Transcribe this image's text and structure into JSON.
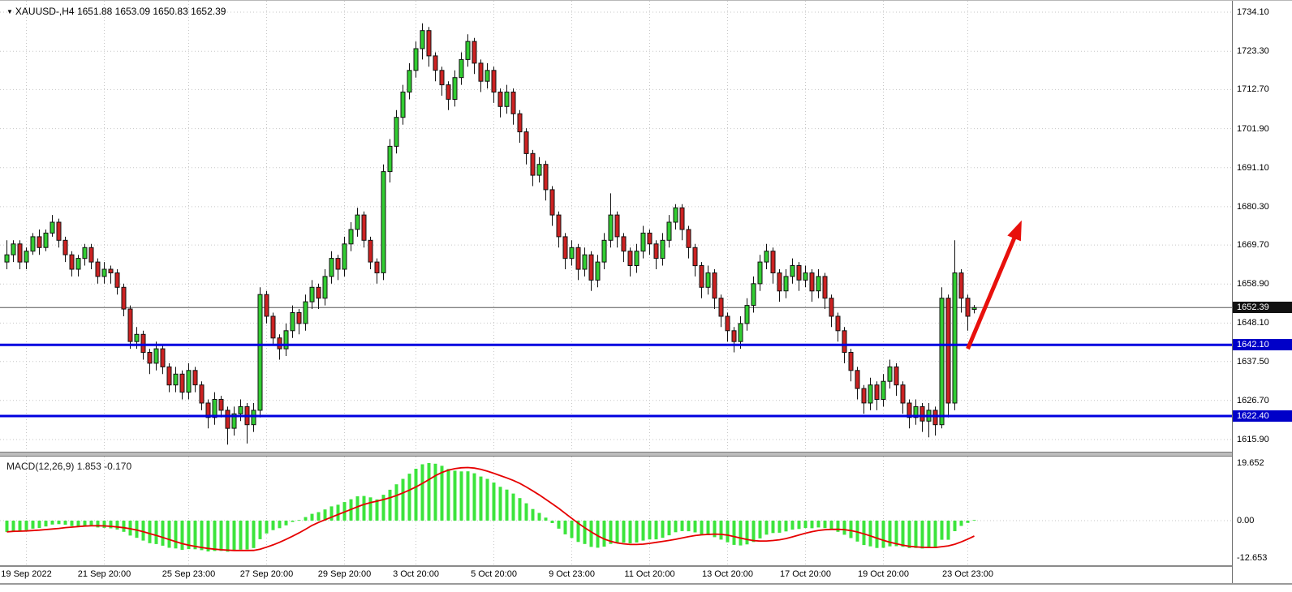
{
  "header": {
    "dropdown_icon": "▼",
    "symbol": "XAUUSD-,H4",
    "ohlc_text": "1651.88 1653.09 1650.83 1652.39"
  },
  "colors": {
    "up": "#32CD32",
    "down": "#CC2222",
    "outline": "#111111",
    "grid": "#c6c6c6",
    "current_price_line": "#555555",
    "level_line": "#0000E0",
    "badge_current_bg": "#111111",
    "badge_level_bg": "#0000C8",
    "arrow": "#E8100C",
    "macd_bar": "#3CE43C",
    "macd_signal": "#E60000"
  },
  "chart_data": {
    "type": "candlestick",
    "symbol": "XAUUSD-",
    "timeframe": "H4",
    "ohlc_header": {
      "open": "1651.88",
      "high": "1653.09",
      "low": "1650.83",
      "close": "1652.39"
    },
    "current_price": 1652.39,
    "y_axis_labels": [
      1734.1,
      1723.3,
      1712.7,
      1701.9,
      1691.1,
      1680.3,
      1669.7,
      1658.9,
      1648.1,
      1637.5,
      1626.7,
      1615.9
    ],
    "x_axis_labels": [
      {
        "label": "19 Sep 2022",
        "index": 3
      },
      {
        "label": "21 Sep 20:00",
        "index": 15
      },
      {
        "label": "25 Sep 23:00",
        "index": 28
      },
      {
        "label": "27 Sep 20:00",
        "index": 40
      },
      {
        "label": "29 Sep 20:00",
        "index": 52
      },
      {
        "label": "3 Oct 20:00",
        "index": 63
      },
      {
        "label": "5 Oct 20:00",
        "index": 75
      },
      {
        "label": "9 Oct 23:00",
        "index": 87
      },
      {
        "label": "11 Oct 20:00",
        "index": 99
      },
      {
        "label": "13 Oct 20:00",
        "index": 111
      },
      {
        "label": "17 Oct 20:00",
        "index": 123
      },
      {
        "label": "19 Oct 20:00",
        "index": 135
      },
      {
        "label": "23 Oct 23:00",
        "index": 148
      }
    ],
    "horizontal_lines": [
      {
        "price": 1642.1,
        "label": "1642.10"
      },
      {
        "price": 1622.4,
        "label": "1622.40"
      }
    ],
    "trend_arrow": {
      "from": {
        "index": 148,
        "price": 1641.0
      },
      "to": {
        "index": 156.3,
        "price": 1676.5
      }
    },
    "candles": [
      [
        1665,
        1671,
        1663,
        1667
      ],
      [
        1667,
        1671,
        1665,
        1670
      ],
      [
        1670,
        1671,
        1663,
        1665
      ],
      [
        1665,
        1669,
        1663,
        1668
      ],
      [
        1668,
        1673,
        1667,
        1672
      ],
      [
        1672,
        1674,
        1667,
        1669
      ],
      [
        1669,
        1674,
        1668,
        1673
      ],
      [
        1673,
        1678,
        1672,
        1676
      ],
      [
        1676,
        1677,
        1669,
        1671
      ],
      [
        1671,
        1672,
        1665,
        1667
      ],
      [
        1667,
        1668,
        1661,
        1663
      ],
      [
        1663,
        1667,
        1661,
        1666
      ],
      [
        1666,
        1670,
        1664,
        1669
      ],
      [
        1669,
        1670,
        1663,
        1665
      ],
      [
        1665,
        1666,
        1659,
        1661
      ],
      [
        1661,
        1665,
        1659,
        1663
      ],
      [
        1663,
        1664,
        1659,
        1662
      ],
      [
        1662,
        1663,
        1656,
        1658
      ],
      [
        1658,
        1659,
        1650,
        1652
      ],
      [
        1652,
        1653,
        1641,
        1643
      ],
      [
        1643,
        1647,
        1641,
        1645
      ],
      [
        1645,
        1646,
        1638,
        1640
      ],
      [
        1640,
        1641,
        1634,
        1637
      ],
      [
        1637,
        1643,
        1635,
        1641
      ],
      [
        1641,
        1642,
        1634,
        1636
      ],
      [
        1636,
        1637,
        1629,
        1631
      ],
      [
        1631,
        1636,
        1629,
        1634
      ],
      [
        1634,
        1635,
        1627,
        1629
      ],
      [
        1629,
        1637,
        1627,
        1635
      ],
      [
        1635,
        1636,
        1629,
        1631
      ],
      [
        1631,
        1632,
        1624,
        1626
      ],
      [
        1626,
        1627,
        1619,
        1622
      ],
      [
        1622,
        1629,
        1620,
        1627
      ],
      [
        1627,
        1628,
        1622,
        1624
      ],
      [
        1624,
        1625,
        1614.5,
        1619
      ],
      [
        1619,
        1625,
        1617,
        1623
      ],
      [
        1623,
        1627,
        1621,
        1625
      ],
      [
        1625,
        1626,
        1614.8,
        1620
      ],
      [
        1620,
        1626,
        1618,
        1624
      ],
      [
        1624,
        1658,
        1622,
        1656
      ],
      [
        1656,
        1657,
        1648,
        1650
      ],
      [
        1650,
        1651,
        1642,
        1644
      ],
      [
        1644,
        1645,
        1638,
        1641
      ],
      [
        1641,
        1648,
        1639,
        1646
      ],
      [
        1646,
        1653,
        1644,
        1651
      ],
      [
        1651,
        1652,
        1645,
        1648
      ],
      [
        1648,
        1656,
        1646,
        1654
      ],
      [
        1654,
        1660,
        1652,
        1658
      ],
      [
        1658,
        1659,
        1652,
        1655
      ],
      [
        1655,
        1663,
        1653,
        1661
      ],
      [
        1661,
        1668,
        1659,
        1666
      ],
      [
        1666,
        1667,
        1660,
        1663
      ],
      [
        1663,
        1672,
        1661,
        1670
      ],
      [
        1670,
        1676,
        1668,
        1674
      ],
      [
        1674,
        1680,
        1672,
        1678
      ],
      [
        1678,
        1679,
        1669,
        1671
      ],
      [
        1671,
        1672,
        1663,
        1665
      ],
      [
        1665,
        1666,
        1659,
        1662
      ],
      [
        1662,
        1692,
        1660,
        1690
      ],
      [
        1690,
        1699,
        1687,
        1697
      ],
      [
        1697,
        1707,
        1695,
        1705
      ],
      [
        1705,
        1714,
        1703,
        1712
      ],
      [
        1712,
        1720,
        1710,
        1718
      ],
      [
        1718,
        1726,
        1716,
        1724
      ],
      [
        1724,
        1731,
        1721,
        1729
      ],
      [
        1729,
        1730,
        1719,
        1722
      ],
      [
        1722,
        1723,
        1715,
        1718
      ],
      [
        1718,
        1719,
        1711,
        1714
      ],
      [
        1714,
        1715,
        1707,
        1710
      ],
      [
        1710,
        1718,
        1708,
        1716
      ],
      [
        1716,
        1723,
        1714,
        1721
      ],
      [
        1721,
        1728,
        1719,
        1726
      ],
      [
        1726,
        1727,
        1717,
        1720
      ],
      [
        1720,
        1721,
        1712,
        1715
      ],
      [
        1715,
        1720,
        1713,
        1718
      ],
      [
        1718,
        1719,
        1709,
        1712
      ],
      [
        1712,
        1713,
        1705,
        1708
      ],
      [
        1708,
        1714,
        1706,
        1712
      ],
      [
        1712,
        1713,
        1703,
        1706
      ],
      [
        1706,
        1707,
        1698,
        1701
      ],
      [
        1701,
        1702,
        1692,
        1695
      ],
      [
        1695,
        1696,
        1686,
        1689
      ],
      [
        1689,
        1694,
        1687,
        1692
      ],
      [
        1692,
        1693,
        1682,
        1685
      ],
      [
        1685,
        1686,
        1675,
        1678
      ],
      [
        1678,
        1679,
        1669,
        1672
      ],
      [
        1672,
        1673,
        1663,
        1666
      ],
      [
        1666,
        1671,
        1664,
        1669
      ],
      [
        1669,
        1670,
        1660,
        1663
      ],
      [
        1663,
        1669,
        1661,
        1667
      ],
      [
        1667,
        1668,
        1657,
        1660
      ],
      [
        1660,
        1667,
        1658,
        1665
      ],
      [
        1665,
        1673,
        1663,
        1671
      ],
      [
        1671,
        1684,
        1669,
        1678
      ],
      [
        1678,
        1679,
        1669,
        1672
      ],
      [
        1672,
        1673,
        1665,
        1668
      ],
      [
        1668,
        1669,
        1661,
        1664
      ],
      [
        1664,
        1670,
        1662,
        1668
      ],
      [
        1668,
        1675,
        1666,
        1673
      ],
      [
        1673,
        1674,
        1667,
        1670
      ],
      [
        1670,
        1671,
        1663,
        1666
      ],
      [
        1666,
        1673,
        1664,
        1671
      ],
      [
        1671,
        1678,
        1669,
        1676
      ],
      [
        1676,
        1681,
        1674,
        1680
      ],
      [
        1680,
        1681,
        1671,
        1674
      ],
      [
        1674,
        1675,
        1666,
        1669
      ],
      [
        1669,
        1670,
        1661,
        1664
      ],
      [
        1664,
        1665,
        1655,
        1658
      ],
      [
        1658,
        1664,
        1656,
        1662
      ],
      [
        1662,
        1663,
        1652,
        1655
      ],
      [
        1655,
        1656,
        1647,
        1650
      ],
      [
        1650,
        1651,
        1643,
        1646
      ],
      [
        1646,
        1647,
        1640,
        1643
      ],
      [
        1643,
        1650,
        1641,
        1648
      ],
      [
        1648,
        1655,
        1646,
        1653
      ],
      [
        1653,
        1661,
        1651,
        1659
      ],
      [
        1659,
        1667,
        1657,
        1665
      ],
      [
        1665,
        1670,
        1663,
        1668
      ],
      [
        1668,
        1669,
        1659,
        1662
      ],
      [
        1662,
        1663,
        1654,
        1657
      ],
      [
        1657,
        1663,
        1655,
        1661
      ],
      [
        1661,
        1666,
        1659,
        1664
      ],
      [
        1664,
        1665,
        1657,
        1660
      ],
      [
        1660,
        1664,
        1658,
        1662
      ],
      [
        1662,
        1663,
        1654,
        1657
      ],
      [
        1657,
        1663,
        1655,
        1661
      ],
      [
        1661,
        1662,
        1652,
        1655
      ],
      [
        1655,
        1656,
        1647,
        1650
      ],
      [
        1650,
        1651,
        1643,
        1646
      ],
      [
        1646,
        1647,
        1637,
        1640
      ],
      [
        1640,
        1641,
        1632,
        1635
      ],
      [
        1635,
        1636,
        1627,
        1630
      ],
      [
        1630,
        1631,
        1623,
        1626
      ],
      [
        1626,
        1633,
        1624,
        1631
      ],
      [
        1631,
        1632,
        1624,
        1627
      ],
      [
        1627,
        1634,
        1625,
        1632
      ],
      [
        1632,
        1638,
        1630,
        1636
      ],
      [
        1636,
        1637,
        1628,
        1631
      ],
      [
        1631,
        1632,
        1623,
        1626
      ],
      [
        1626,
        1627,
        1619,
        1622
      ],
      [
        1622,
        1627,
        1620,
        1625
      ],
      [
        1625,
        1626,
        1618,
        1621
      ],
      [
        1621,
        1626,
        1616.5,
        1624
      ],
      [
        1624,
        1625,
        1617,
        1620
      ],
      [
        1620,
        1658,
        1619,
        1655
      ],
      [
        1655,
        1656,
        1622,
        1626
      ],
      [
        1626,
        1671,
        1624,
        1662
      ],
      [
        1662,
        1663,
        1651,
        1655
      ],
      [
        1655,
        1656,
        1646,
        1650
      ],
      [
        1651.9,
        1653.1,
        1650.8,
        1652.4
      ]
    ],
    "macd": {
      "label": "MACD(12,26,9)",
      "value_main": "1.853",
      "value_signal": "-0.170",
      "params": [
        12,
        26,
        9
      ],
      "y_axis_labels": [
        "19.652",
        "0.00",
        "-12.653"
      ]
    }
  }
}
